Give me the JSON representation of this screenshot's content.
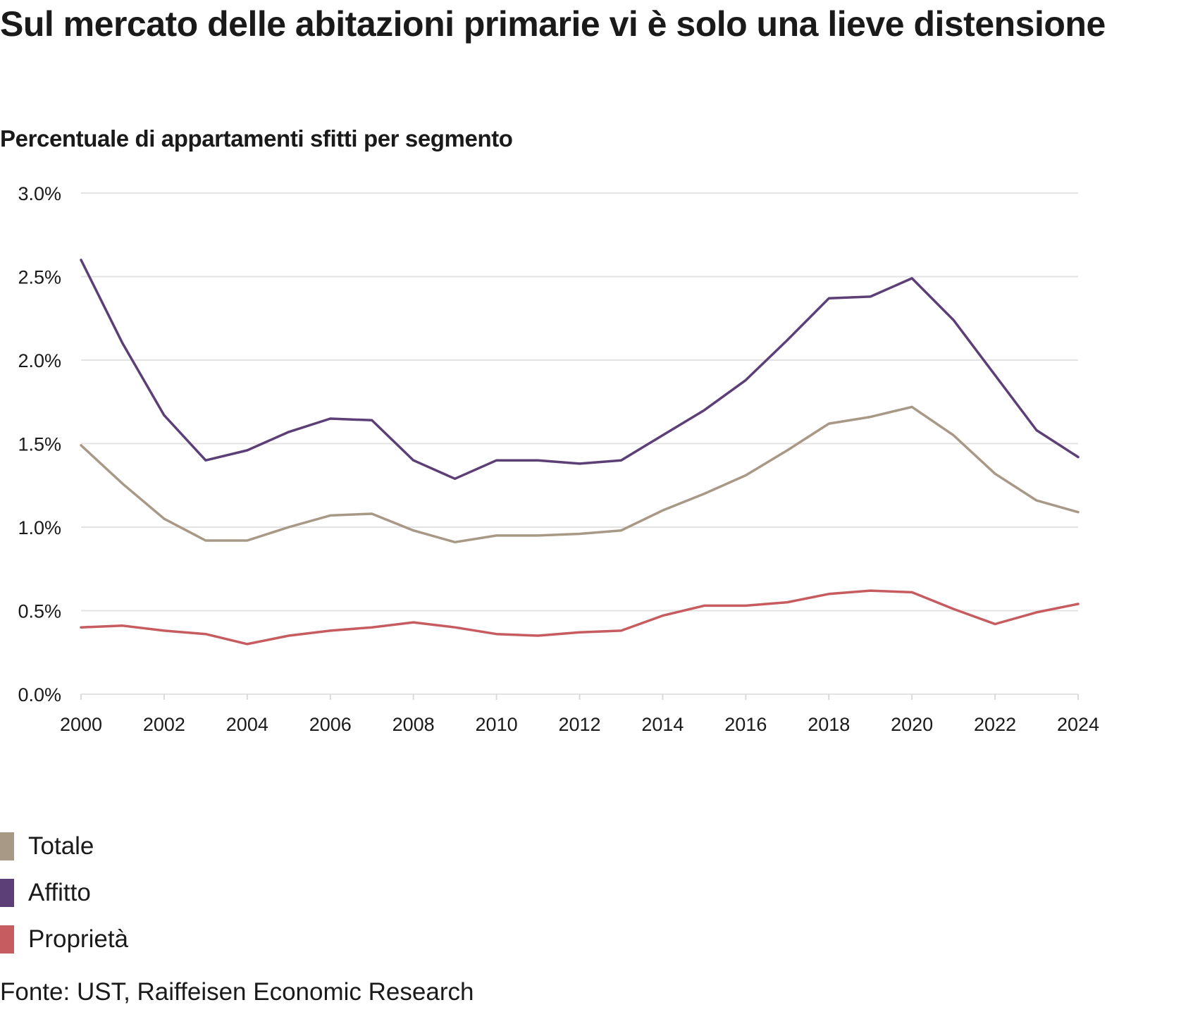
{
  "title": "Sul mercato delle abitazioni primarie vi è solo una lieve distensione",
  "subtitle": "Percentuale di appartamenti sfitti per segmento",
  "source": "Fonte: UST, Raiffeisen Economic Research",
  "chart_data": {
    "type": "line",
    "title": "Sul mercato delle abitazioni primarie vi è solo una lieve distensione",
    "subtitle": "Percentuale di appartamenti sfitti per segmento",
    "xlabel": "",
    "ylabel": "",
    "x": [
      2000,
      2001,
      2002,
      2003,
      2004,
      2005,
      2006,
      2007,
      2008,
      2009,
      2010,
      2011,
      2012,
      2013,
      2014,
      2015,
      2016,
      2017,
      2018,
      2019,
      2020,
      2021,
      2022,
      2023,
      2024
    ],
    "xlim": [
      2000,
      2024
    ],
    "xticks": [
      "2000",
      "2002",
      "2004",
      "2006",
      "2008",
      "2010",
      "2012",
      "2014",
      "2016",
      "2018",
      "2020",
      "2022",
      "2024"
    ],
    "ylim": [
      0,
      3.0
    ],
    "yticks": [
      0.0,
      0.5,
      1.0,
      1.5,
      2.0,
      2.5,
      3.0
    ],
    "ytick_labels": [
      "0.0%",
      "0.5%",
      "1.0%",
      "1.5%",
      "2.0%",
      "2.5%",
      "3.0%"
    ],
    "y_unit": "%",
    "grid": true,
    "legend_position": "bottom-left",
    "series": [
      {
        "name": "Totale",
        "color": "#a89886",
        "values": [
          1.49,
          1.26,
          1.05,
          0.92,
          0.92,
          1.0,
          1.07,
          1.08,
          0.98,
          0.91,
          0.95,
          0.95,
          0.96,
          0.98,
          1.1,
          1.2,
          1.31,
          1.46,
          1.62,
          1.66,
          1.72,
          1.55,
          1.32,
          1.16,
          1.09
        ]
      },
      {
        "name": "Affitto",
        "color": "#5b3f76",
        "values": [
          2.6,
          2.1,
          1.67,
          1.4,
          1.46,
          1.57,
          1.65,
          1.64,
          1.4,
          1.29,
          1.4,
          1.4,
          1.38,
          1.4,
          1.55,
          1.7,
          1.88,
          2.12,
          2.37,
          2.38,
          2.49,
          2.24,
          1.91,
          1.58,
          1.42
        ]
      },
      {
        "name": "Proprietà",
        "color": "#c65c5f",
        "values": [
          0.4,
          0.41,
          0.38,
          0.36,
          0.3,
          0.35,
          0.38,
          0.4,
          0.43,
          0.4,
          0.36,
          0.35,
          0.37,
          0.38,
          0.47,
          0.53,
          0.53,
          0.55,
          0.6,
          0.62,
          0.61,
          0.51,
          0.42,
          0.49,
          0.54
        ]
      }
    ]
  }
}
